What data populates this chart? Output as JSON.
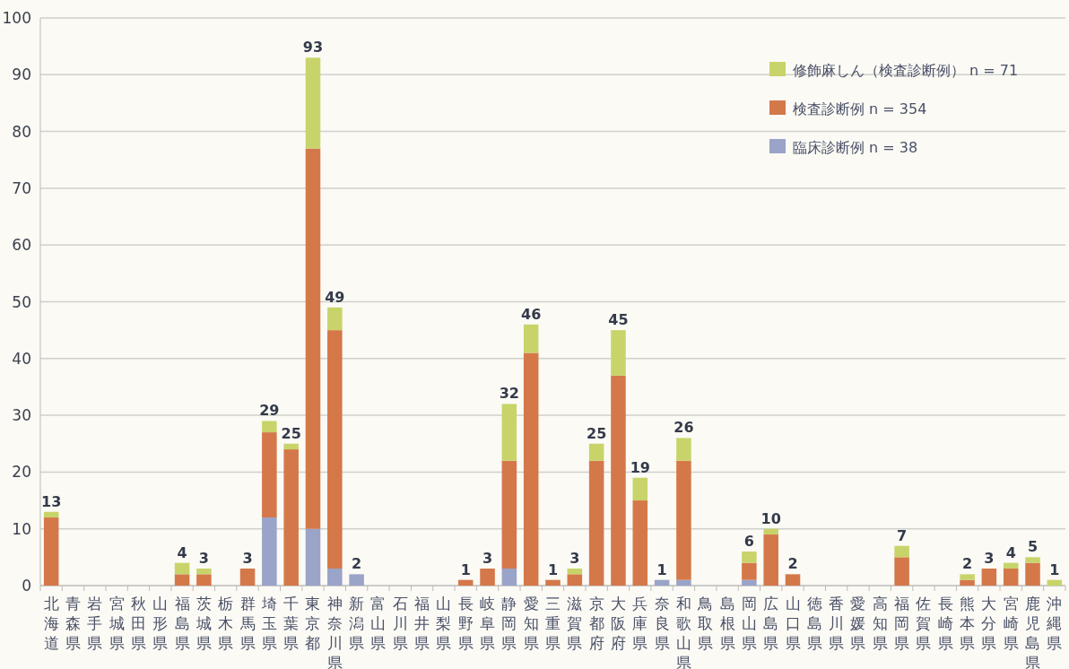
{
  "chart_data": {
    "type": "bar",
    "stacked": true,
    "categories": [
      "北海道",
      "青森県",
      "岩手県",
      "宮城県",
      "秋田県",
      "山形県",
      "福島県",
      "茨城県",
      "栃木県",
      "群馬県",
      "埼玉県",
      "千葉県",
      "東京都",
      "神奈川県",
      "新潟県",
      "富山県",
      "石川県",
      "福井県",
      "山梨県",
      "長野県",
      "岐阜県",
      "静岡県",
      "愛知県",
      "三重県",
      "滋賀県",
      "京都府",
      "大阪府",
      "兵庫県",
      "奈良県",
      "和歌山県",
      "鳥取県",
      "島根県",
      "岡山県",
      "広島県",
      "山口県",
      "徳島県",
      "香川県",
      "愛媛県",
      "高知県",
      "福岡県",
      "佐賀県",
      "長崎県",
      "熊本県",
      "大分県",
      "宮崎県",
      "鹿児島県",
      "沖縄県"
    ],
    "series": [
      {
        "name": "臨床診断例 n = 38",
        "color": "#9aa3c8",
        "values": [
          0,
          0,
          0,
          0,
          0,
          0,
          0,
          0,
          0,
          0,
          12,
          0,
          10,
          3,
          2,
          0,
          0,
          0,
          0,
          0,
          0,
          3,
          0,
          0,
          0,
          0,
          0,
          0,
          1,
          1,
          0,
          0,
          1,
          0,
          0,
          0,
          0,
          0,
          0,
          0,
          0,
          0,
          0,
          0,
          0,
          0,
          0
        ]
      },
      {
        "name": "検査診断例 n = 354",
        "color": "#d4784a",
        "values": [
          12,
          0,
          0,
          0,
          0,
          0,
          2,
          2,
          0,
          3,
          15,
          24,
          67,
          42,
          0,
          0,
          0,
          0,
          0,
          1,
          3,
          19,
          41,
          1,
          2,
          22,
          37,
          15,
          0,
          21,
          0,
          0,
          3,
          9,
          2,
          0,
          0,
          0,
          0,
          5,
          0,
          0,
          1,
          3,
          3,
          4,
          0
        ]
      },
      {
        "name": "修飾麻しん（検査診断例） n = 71",
        "color": "#c8d46a",
        "values": [
          1,
          0,
          0,
          0,
          0,
          0,
          2,
          1,
          0,
          0,
          2,
          1,
          16,
          4,
          0,
          0,
          0,
          0,
          0,
          0,
          0,
          10,
          5,
          0,
          1,
          3,
          8,
          4,
          0,
          4,
          0,
          0,
          2,
          1,
          0,
          0,
          0,
          0,
          0,
          2,
          0,
          0,
          1,
          0,
          1,
          1,
          1
        ]
      }
    ],
    "totals": [
      "13",
      null,
      null,
      null,
      null,
      null,
      "4",
      "3",
      null,
      "3",
      "29",
      "25",
      "93",
      "49",
      "2",
      null,
      null,
      null,
      null,
      "1",
      "3",
      "32",
      "46",
      "1",
      "3",
      "25",
      "45",
      "19",
      "1",
      "26",
      null,
      null,
      "6",
      "10",
      "2",
      null,
      null,
      null,
      null,
      "7",
      null,
      null,
      "2",
      "3",
      "4",
      "5",
      "1"
    ],
    "ylim": [
      0,
      100
    ],
    "yticks": [
      0,
      10,
      20,
      30,
      40,
      50,
      60,
      70,
      80,
      90,
      100
    ],
    "grid": "y",
    "legend": "top right"
  }
}
